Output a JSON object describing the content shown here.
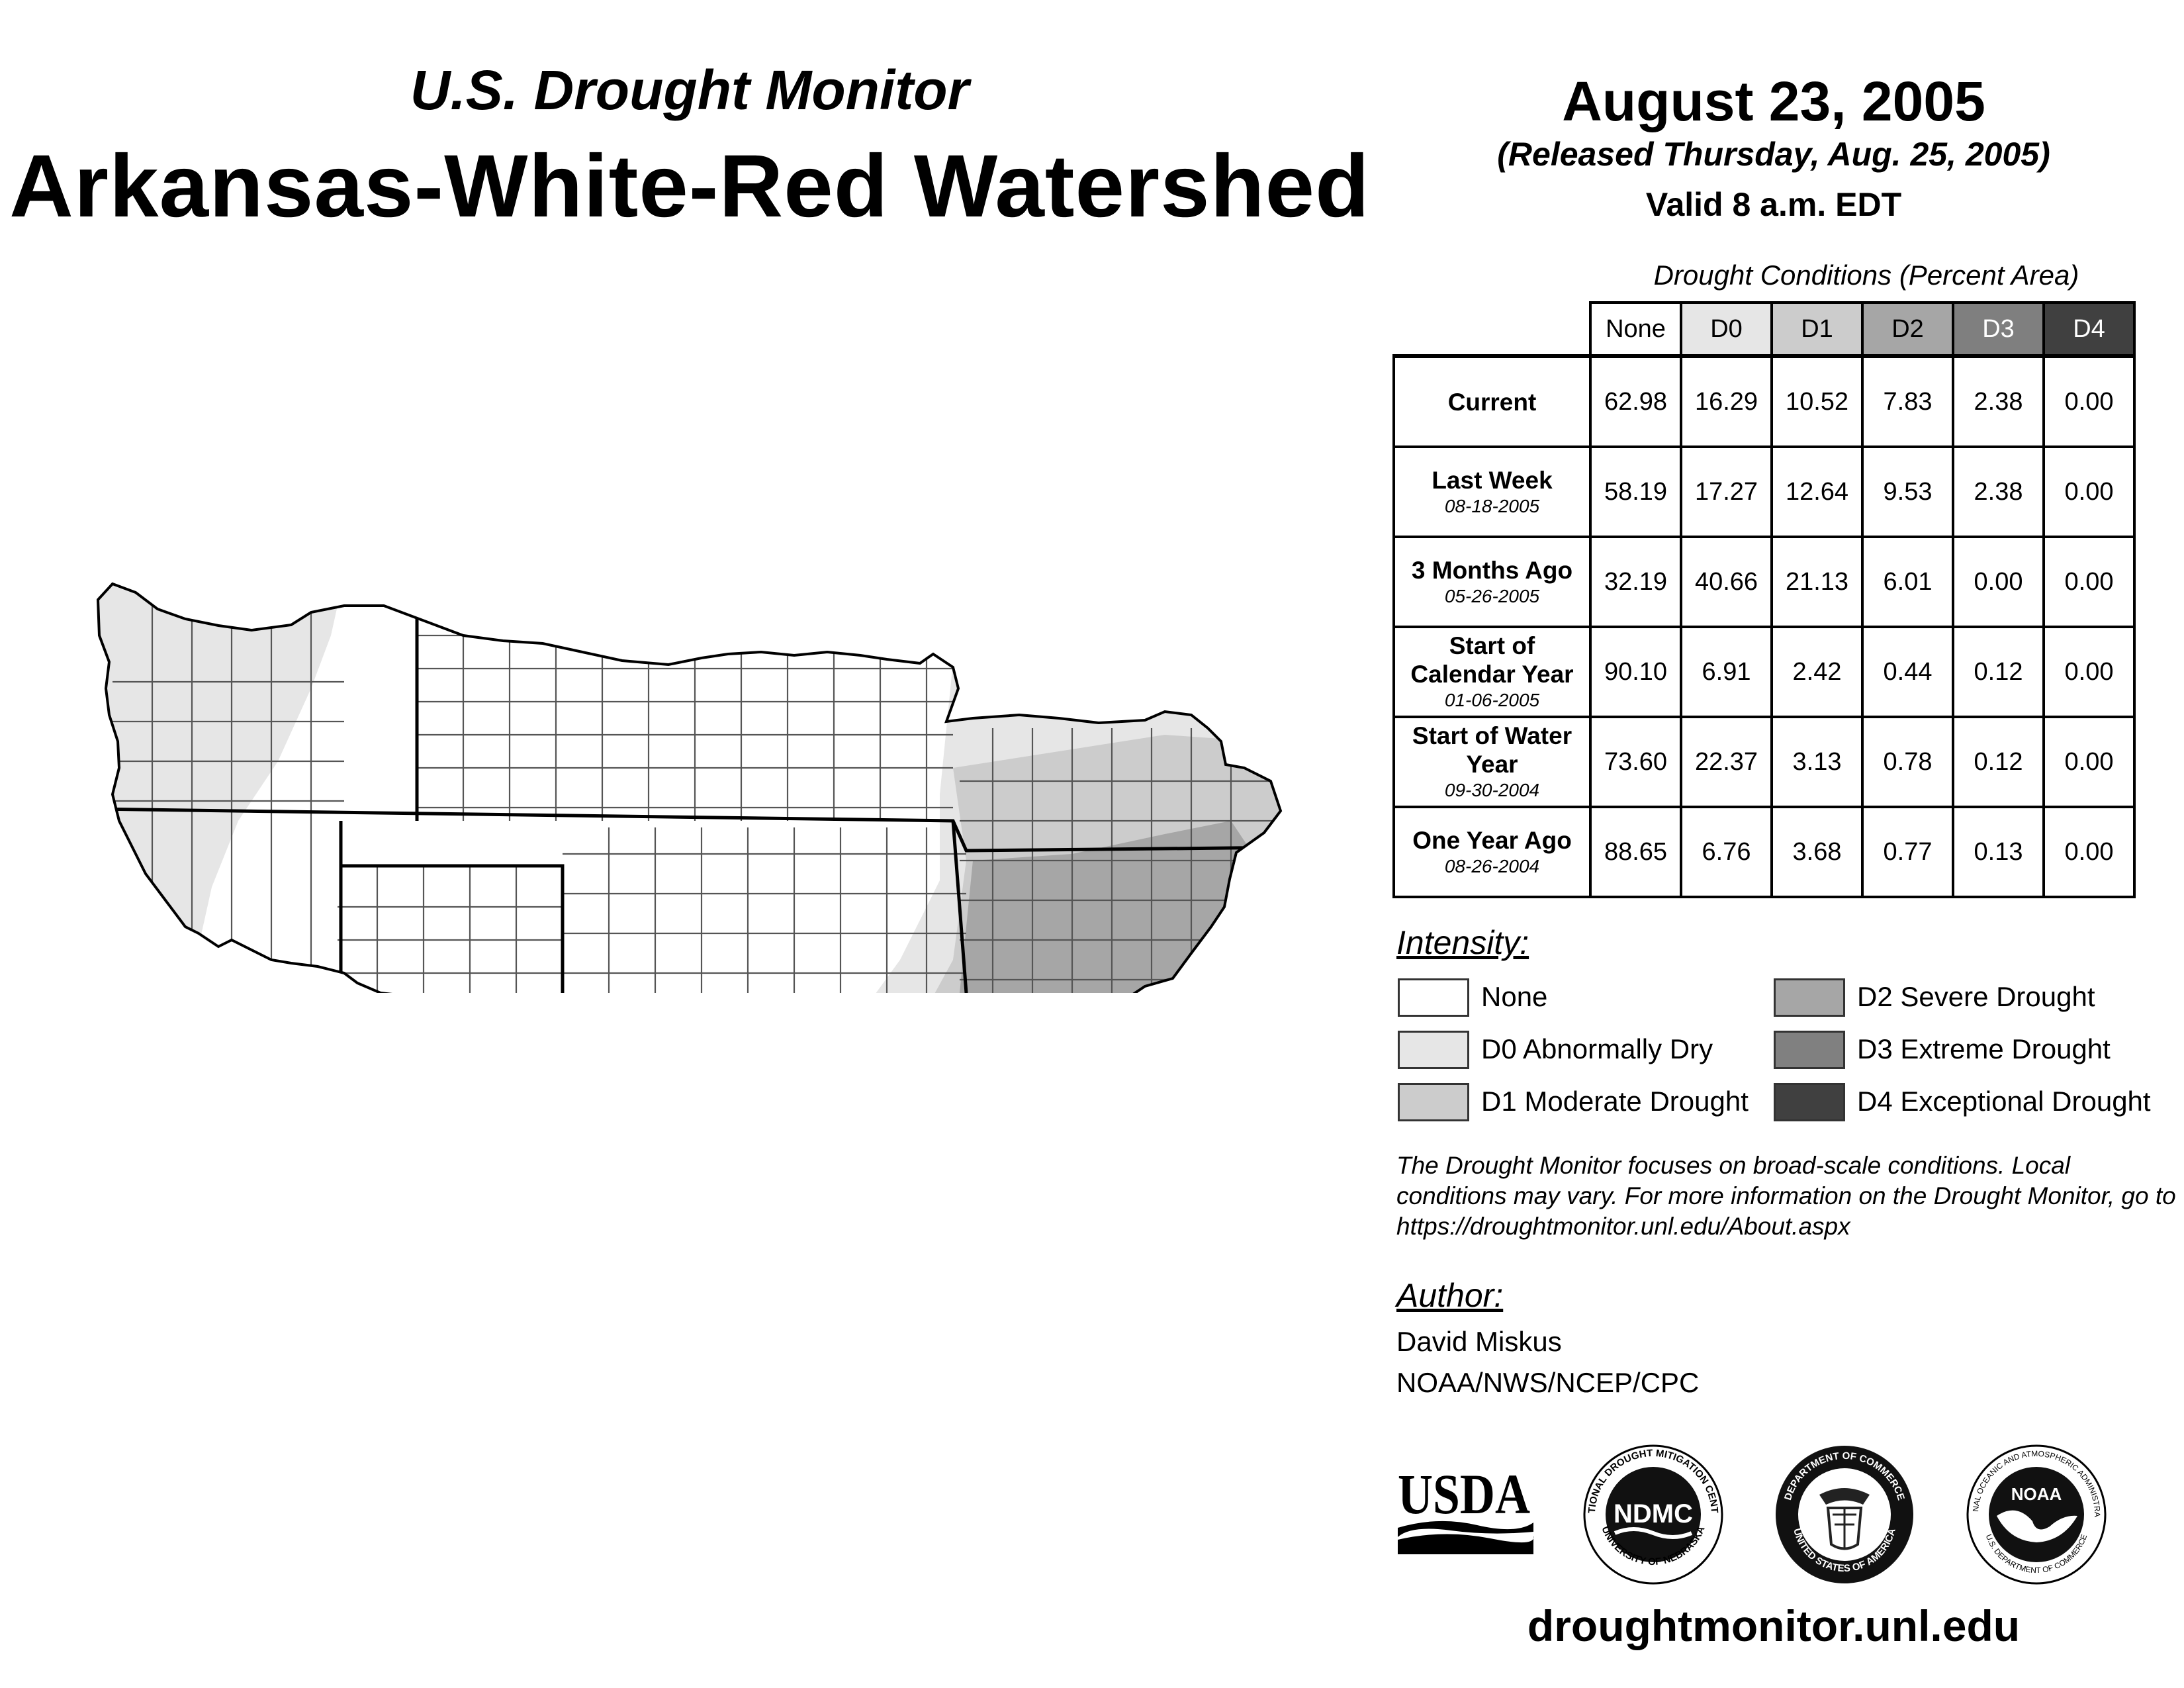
{
  "header": {
    "subtitle": "U.S. Drought Monitor",
    "title": "Arkansas-White-Red Watershed",
    "date": "August 23, 2005",
    "released": "(Released Thursday, Aug. 25, 2005)",
    "valid": "Valid 8 a.m. EDT"
  },
  "table": {
    "caption": "Drought Conditions (Percent Area)",
    "columns": [
      "None",
      "D0",
      "D1",
      "D2",
      "D3",
      "D4"
    ],
    "rows": [
      {
        "label": "Current",
        "date": "",
        "values": [
          "62.98",
          "16.29",
          "10.52",
          "7.83",
          "2.38",
          "0.00"
        ]
      },
      {
        "label": "Last Week",
        "date": "08-18-2005",
        "values": [
          "58.19",
          "17.27",
          "12.64",
          "9.53",
          "2.38",
          "0.00"
        ]
      },
      {
        "label": "3 Months Ago",
        "date": "05-26-2005",
        "values": [
          "32.19",
          "40.66",
          "21.13",
          "6.01",
          "0.00",
          "0.00"
        ]
      },
      {
        "label": "Start of Calendar Year",
        "date": "01-06-2005",
        "values": [
          "90.10",
          "6.91",
          "2.42",
          "0.44",
          "0.12",
          "0.00"
        ]
      },
      {
        "label": "Start of Water Year",
        "date": "09-30-2004",
        "values": [
          "73.60",
          "22.37",
          "3.13",
          "0.78",
          "0.12",
          "0.00"
        ]
      },
      {
        "label": "One Year Ago",
        "date": "08-26-2004",
        "values": [
          "88.65",
          "6.76",
          "3.68",
          "0.77",
          "0.13",
          "0.00"
        ]
      }
    ]
  },
  "legend": {
    "title": "Intensity:",
    "items": [
      {
        "label": "None",
        "color": "#ffffff"
      },
      {
        "label": "D0 Abnormally Dry",
        "color": "#e6e6e6"
      },
      {
        "label": "D1 Moderate Drought",
        "color": "#cccccc"
      },
      {
        "label": "D2 Severe Drought",
        "color": "#a6a6a6"
      },
      {
        "label": "D3 Extreme Drought",
        "color": "#808080"
      },
      {
        "label": "D4 Exceptional Drought",
        "color": "#404040"
      }
    ]
  },
  "note": "The Drought Monitor focuses on broad-scale conditions. Local conditions may vary. For more information on the Drought Monitor, go to https://droughtmonitor.unl.edu/About.aspx",
  "author": {
    "title": "Author:",
    "name": "David Miskus",
    "org": "NOAA/NWS/NCEP/CPC"
  },
  "logos": {
    "usda": "USDA",
    "ndmc": "NDMC",
    "ndmc_ring_top": "NATIONAL DROUGHT MITIGATION CENTER",
    "ndmc_ring_bottom": "UNIVERSITY OF NEBRASKA",
    "doc_ring_top": "DEPARTMENT OF COMMERCE",
    "doc_ring_bottom": "UNITED STATES OF AMERICA",
    "noaa": "NOAA",
    "noaa_ring_top": "NATIONAL OCEANIC AND ATMOSPHERIC ADMINISTRATION",
    "noaa_ring_bottom": "U.S. DEPARTMENT OF COMMERCE"
  },
  "website": "droughtmonitor.unl.edu"
}
